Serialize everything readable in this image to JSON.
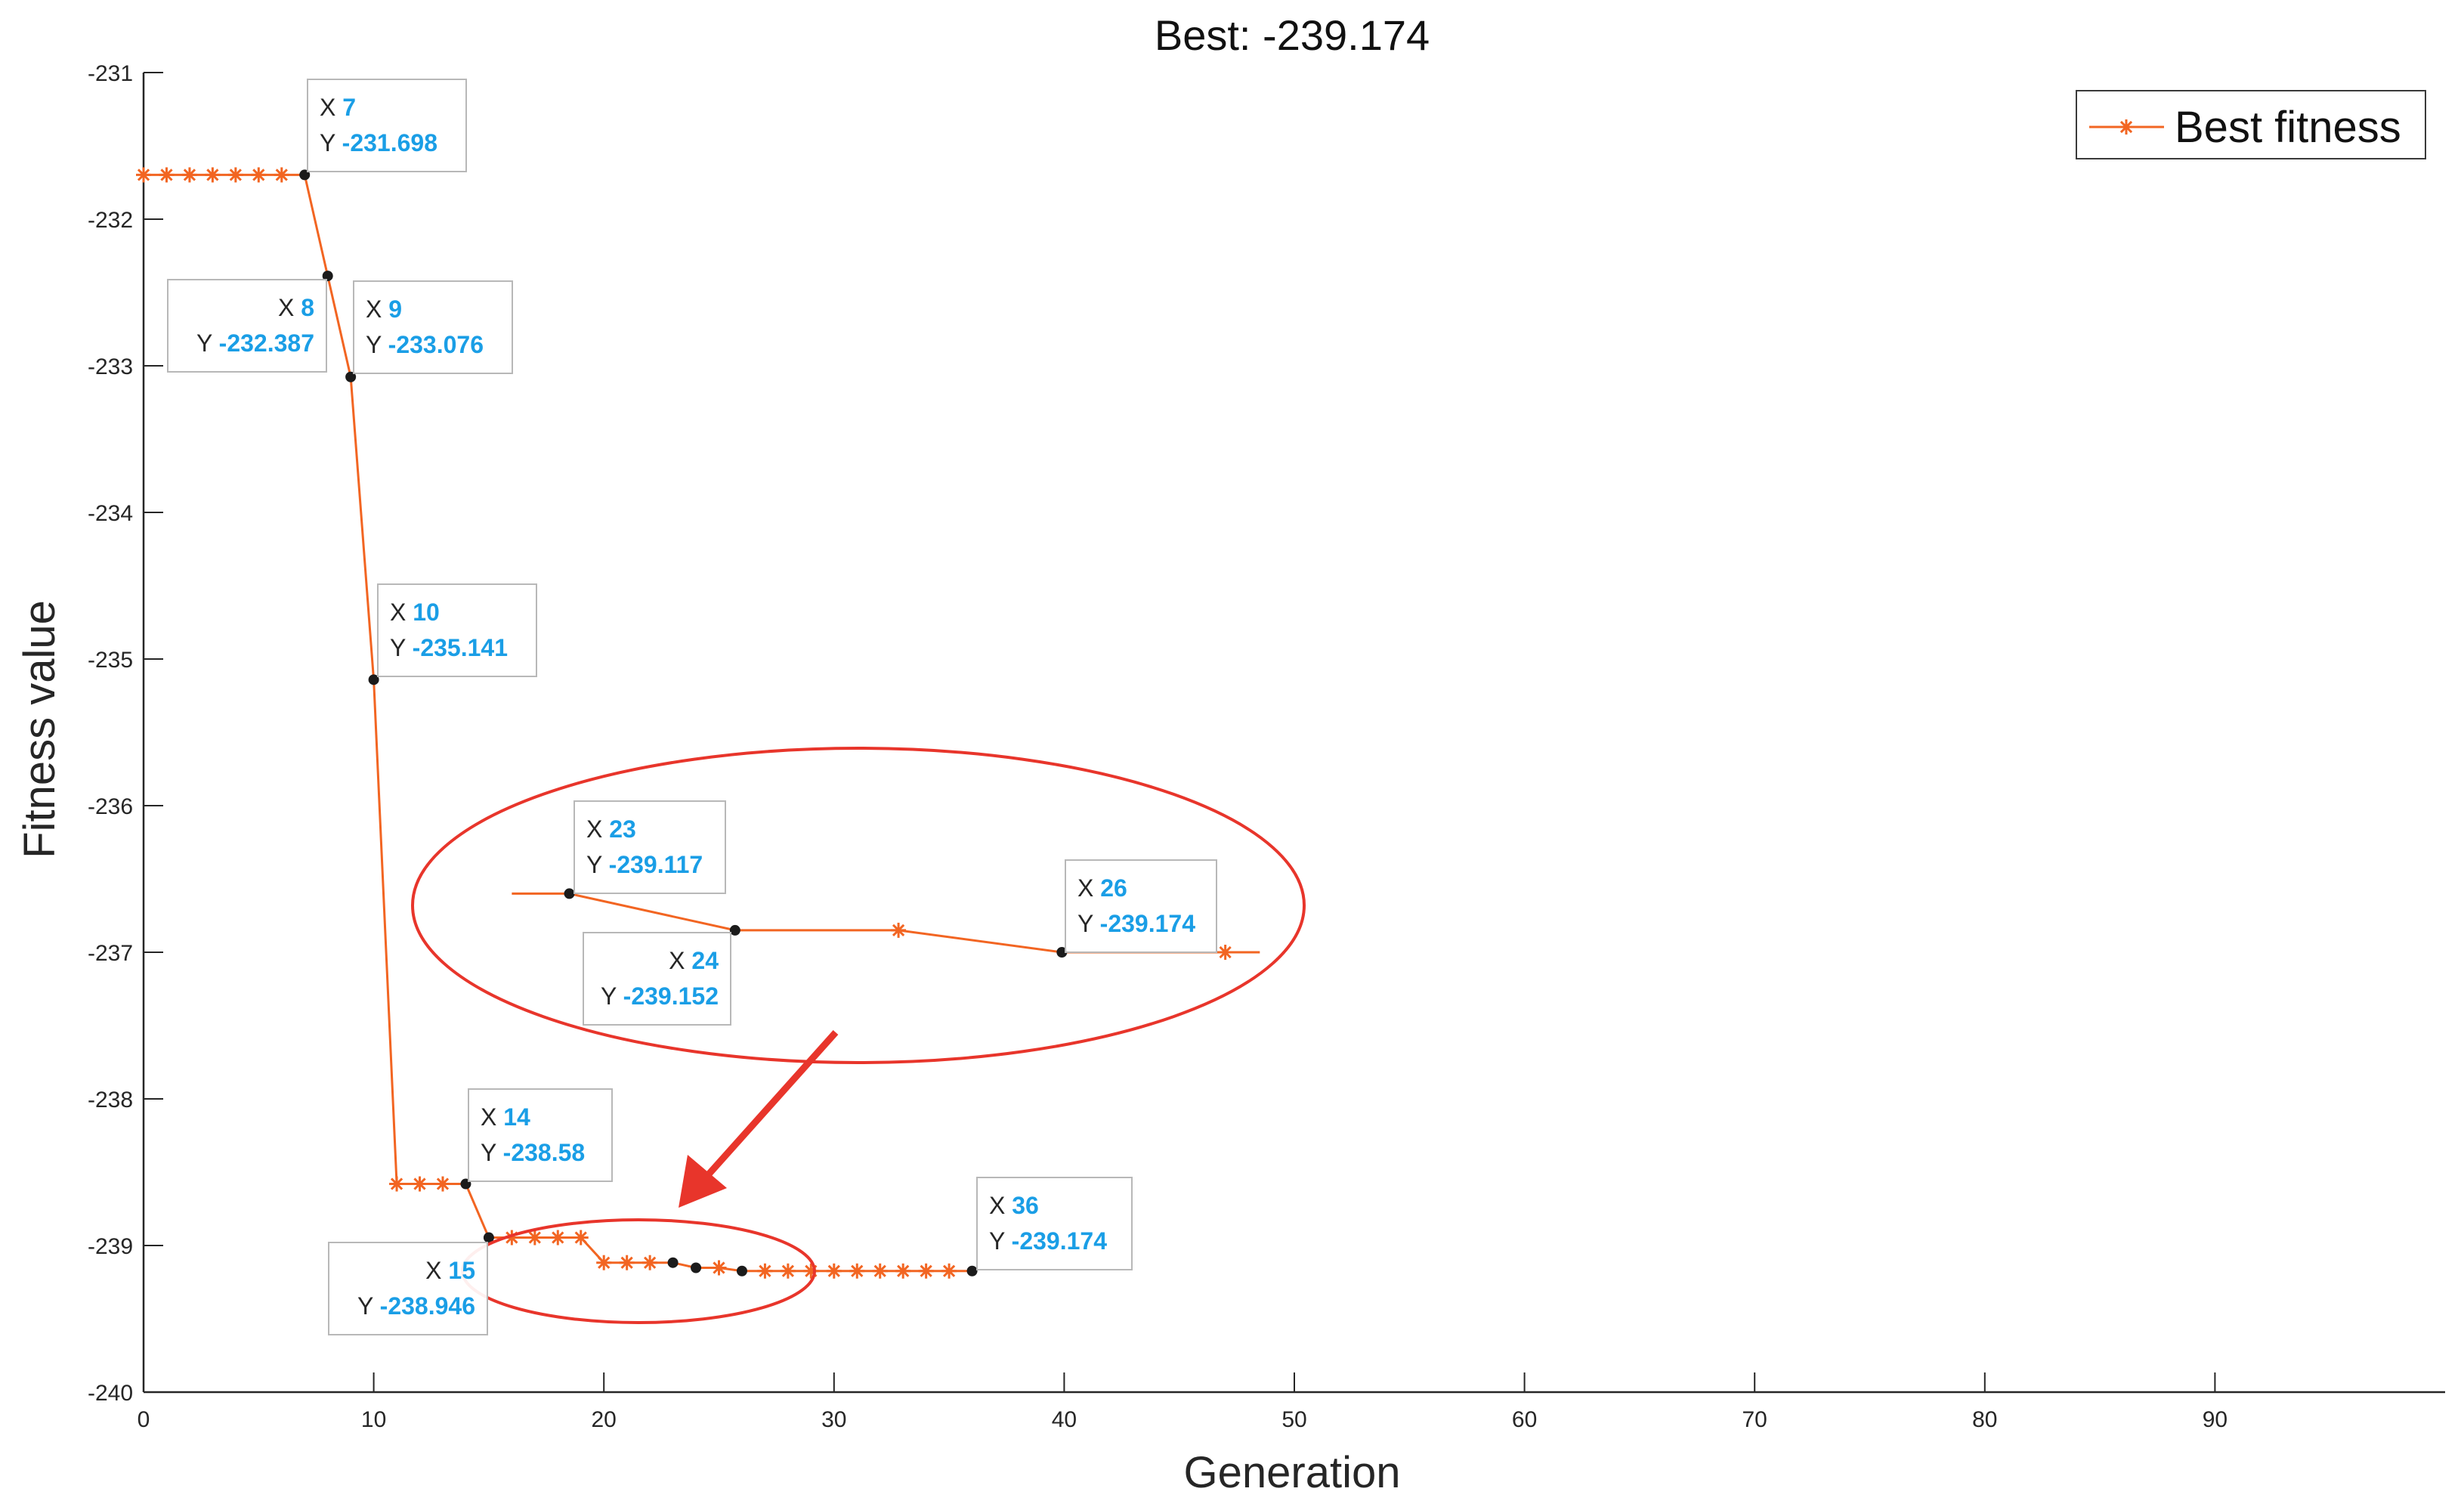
{
  "chart_data": {
    "type": "line",
    "title": "Best: -239.174",
    "xlabel": "Generation",
    "ylabel": "Fitness value",
    "xlim": [
      0,
      100
    ],
    "ylim": [
      -240,
      -231
    ],
    "xticks": [
      0,
      10,
      20,
      30,
      40,
      50,
      60,
      70,
      80,
      90
    ],
    "yticks": [
      -240,
      -239,
      -238,
      -237,
      -236,
      -235,
      -234,
      -233,
      -232,
      -231
    ],
    "grid": false,
    "legend_position": "top-right",
    "series": [
      {
        "name": "Best fitness",
        "color": "#f26522",
        "marker": "asterisk",
        "points": [
          [
            0,
            -231.698
          ],
          [
            1,
            -231.698
          ],
          [
            2,
            -231.698
          ],
          [
            3,
            -231.698
          ],
          [
            4,
            -231.698
          ],
          [
            5,
            -231.698
          ],
          [
            6,
            -231.698
          ],
          [
            7,
            -231.698
          ],
          [
            8,
            -232.387
          ],
          [
            9,
            -233.076
          ],
          [
            10,
            -235.141
          ],
          [
            11,
            -238.58
          ],
          [
            12,
            -238.58
          ],
          [
            13,
            -238.58
          ],
          [
            14,
            -238.58
          ],
          [
            15,
            -238.946
          ],
          [
            16,
            -238.946
          ],
          [
            17,
            -238.946
          ],
          [
            18,
            -238.946
          ],
          [
            19,
            -238.946
          ],
          [
            20,
            -239.117
          ],
          [
            21,
            -239.117
          ],
          [
            22,
            -239.117
          ],
          [
            23,
            -239.117
          ],
          [
            24,
            -239.152
          ],
          [
            25,
            -239.152
          ],
          [
            26,
            -239.174
          ],
          [
            27,
            -239.174
          ],
          [
            28,
            -239.174
          ],
          [
            29,
            -239.174
          ],
          [
            30,
            -239.174
          ],
          [
            31,
            -239.174
          ],
          [
            32,
            -239.174
          ],
          [
            33,
            -239.174
          ],
          [
            34,
            -239.174
          ],
          [
            35,
            -239.174
          ],
          [
            36,
            -239.174
          ]
        ]
      }
    ],
    "zoom_inset": {
      "points": [
        [
          16,
          -239.117
        ],
        [
          18.5,
          -239.117
        ],
        [
          25.7,
          -239.152
        ],
        [
          32.8,
          -239.152
        ],
        [
          39.9,
          -239.174
        ],
        [
          48.5,
          -239.174
        ]
      ]
    },
    "datatips": [
      {
        "x": "7",
        "y": "-231.698"
      },
      {
        "x": "8",
        "y": "-232.387"
      },
      {
        "x": "9",
        "y": "-233.076"
      },
      {
        "x": "10",
        "y": "-235.141"
      },
      {
        "x": "14",
        "y": "-238.58"
      },
      {
        "x": "15",
        "y": "-238.946"
      },
      {
        "x": "23",
        "y": "-239.117"
      },
      {
        "x": "24",
        "y": "-239.152"
      },
      {
        "x": "26",
        "y": "-239.174"
      },
      {
        "x": "36",
        "y": "-239.174"
      }
    ],
    "tip_value_color": "#1a9ee6",
    "annotation_color": "#e8352b"
  }
}
